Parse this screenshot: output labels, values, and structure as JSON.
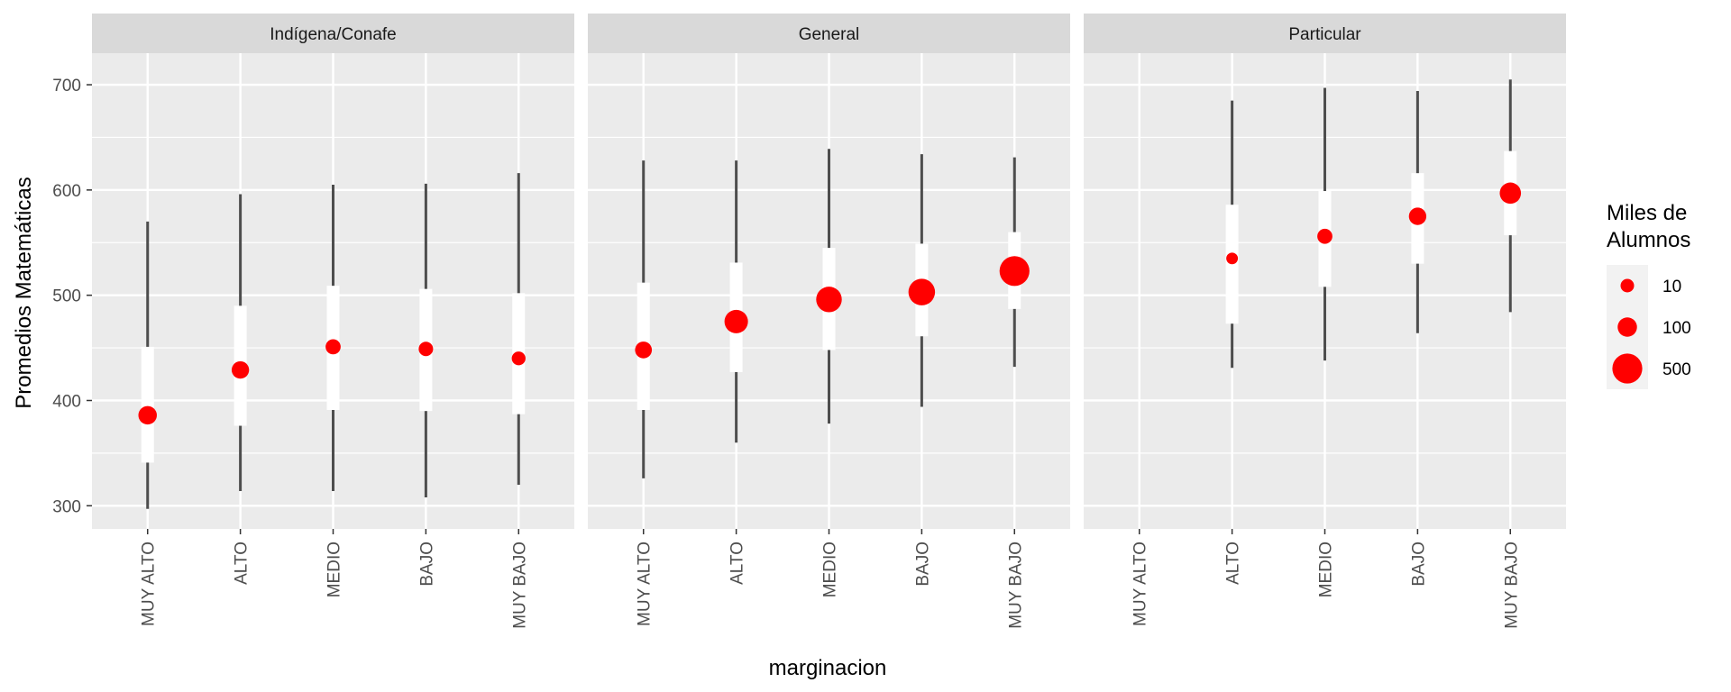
{
  "chart_data": {
    "type": "scatter",
    "title": "",
    "xlabel": "marginacion",
    "ylabel": "Promedios Matemáticas",
    "ylim": [
      278,
      730
    ],
    "yticks": [
      300,
      400,
      500,
      600,
      700
    ],
    "categories": [
      "MUY ALTO",
      "ALTO",
      "MEDIO",
      "BAJO",
      "MUY BAJO"
    ],
    "grid": true,
    "legend": {
      "title_lines": [
        "Miles de",
        "Alumnos"
      ],
      "position": "right",
      "entries": [
        {
          "label": "10",
          "value": 10
        },
        {
          "label": "100",
          "value": 100
        },
        {
          "label": "500",
          "value": 500
        }
      ]
    },
    "point_color": "#ff0000",
    "panels": [
      {
        "name": "Indígena/Conafe",
        "points": [
          {
            "category": "MUY ALTO",
            "mean": 386,
            "low": 297,
            "q1": 341,
            "q3": 451,
            "high": 570,
            "size": 80
          },
          {
            "category": "ALTO",
            "mean": 429,
            "low": 314,
            "q1": 376,
            "q3": 490,
            "high": 596,
            "size": 60
          },
          {
            "category": "MEDIO",
            "mean": 451,
            "low": 314,
            "q1": 391,
            "q3": 509,
            "high": 605,
            "size": 25
          },
          {
            "category": "BAJO",
            "mean": 449,
            "low": 308,
            "q1": 390,
            "q3": 506,
            "high": 606,
            "size": 18
          },
          {
            "category": "MUY BAJO",
            "mean": 440,
            "low": 320,
            "q1": 387,
            "q3": 502,
            "high": 616,
            "size": 12
          }
        ]
      },
      {
        "name": "General",
        "points": [
          {
            "category": "MUY ALTO",
            "mean": 448,
            "low": 326,
            "q1": 391,
            "q3": 512,
            "high": 628,
            "size": 50
          },
          {
            "category": "ALTO",
            "mean": 475,
            "low": 360,
            "q1": 427,
            "q3": 531,
            "high": 628,
            "size": 220
          },
          {
            "category": "MEDIO",
            "mean": 496,
            "low": 378,
            "q1": 448,
            "q3": 545,
            "high": 639,
            "size": 300
          },
          {
            "category": "BAJO",
            "mean": 503,
            "low": 394,
            "q1": 461,
            "q3": 549,
            "high": 634,
            "size": 340
          },
          {
            "category": "MUY BAJO",
            "mean": 523,
            "low": 432,
            "q1": 487,
            "q3": 560,
            "high": 631,
            "size": 500
          }
        ]
      },
      {
        "name": "Particular",
        "points": [
          {
            "category": "ALTO",
            "mean": 535,
            "low": 431,
            "q1": 473,
            "q3": 586,
            "high": 685,
            "size": 1
          },
          {
            "category": "MEDIO",
            "mean": 556,
            "low": 438,
            "q1": 508,
            "q3": 599,
            "high": 697,
            "size": 25
          },
          {
            "category": "BAJO",
            "mean": 575,
            "low": 464,
            "q1": 530,
            "q3": 616,
            "high": 694,
            "size": 60
          },
          {
            "category": "MUY BAJO",
            "mean": 597,
            "low": 484,
            "q1": 557,
            "q3": 637,
            "high": 705,
            "size": 150
          }
        ]
      }
    ]
  }
}
